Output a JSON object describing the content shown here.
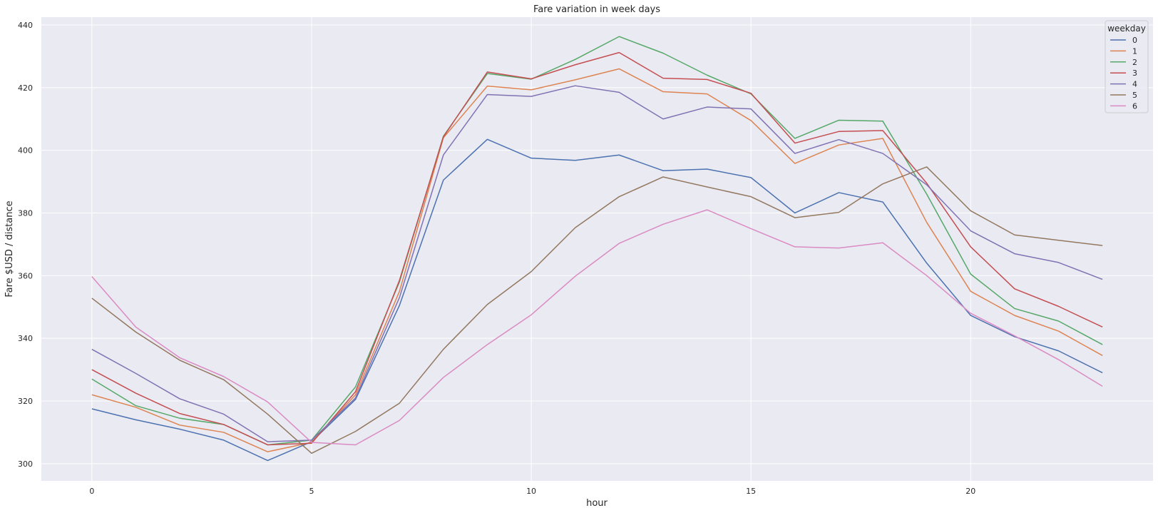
{
  "chart_data": {
    "type": "line",
    "title": "Fare variation in week days",
    "xlabel": "hour",
    "ylabel": "Fare $USD / distance",
    "xlim": [
      -1.15,
      24.15
    ],
    "ylim": [
      294.5,
      442.5
    ],
    "xticks": [
      0,
      5,
      10,
      15,
      20
    ],
    "yticks": [
      300,
      320,
      340,
      360,
      380,
      400,
      420,
      440
    ],
    "grid": true,
    "legend_title": "weekday",
    "legend_placement": "top-right",
    "x": [
      0,
      1,
      2,
      3,
      4,
      5,
      6,
      7,
      8,
      9,
      10,
      11,
      12,
      13,
      14,
      15,
      16,
      17,
      18,
      19,
      20,
      21,
      22,
      23
    ],
    "series": [
      {
        "name": "0",
        "color": "#4c72b0",
        "values": [
          317.5,
          314,
          311,
          307.5,
          301,
          307,
          320.5,
          350.5,
          390.5,
          403.5,
          397.5,
          396.8,
          398.5,
          393.5,
          394,
          391.3,
          380,
          386.5,
          383.5,
          364,
          347.3,
          340.5,
          336,
          329
        ]
      },
      {
        "name": "1",
        "color": "#dd8452",
        "values": [
          322,
          318,
          312.3,
          310,
          303.8,
          306.8,
          322,
          355,
          404,
          420.5,
          419.3,
          422.5,
          426,
          418.7,
          418,
          409.5,
          395.8,
          401.7,
          403.8,
          377,
          355,
          347.3,
          342.3,
          334.5
        ]
      },
      {
        "name": "2",
        "color": "#55a868",
        "values": [
          327,
          318.5,
          314.5,
          312.5,
          306,
          307.5,
          324.5,
          358,
          404.5,
          424.5,
          422.7,
          429,
          436.3,
          431,
          424,
          418,
          403.8,
          409.6,
          409.3,
          386,
          360.5,
          349.5,
          345.5,
          338
        ]
      },
      {
        "name": "3",
        "color": "#c44e52",
        "values": [
          330,
          322.5,
          316,
          312.5,
          306,
          306.5,
          323,
          358.5,
          404.3,
          425,
          422.8,
          427.3,
          431.2,
          423,
          422.6,
          418.2,
          402.3,
          406,
          406.3,
          389.5,
          369.2,
          355.8,
          350.2,
          343.6
        ]
      },
      {
        "name": "4",
        "color": "#8172b3",
        "values": [
          336.5,
          328.8,
          320.7,
          315.8,
          307,
          307.5,
          321,
          353,
          398.5,
          417.8,
          417.2,
          420.6,
          418.5,
          410,
          413.8,
          413.2,
          399,
          403.4,
          399,
          389,
          374.3,
          367,
          364.2,
          358.8
        ]
      },
      {
        "name": "5",
        "color": "#937860",
        "values": [
          352.8,
          342,
          333,
          326.8,
          315.8,
          303.3,
          310.3,
          319.3,
          336.5,
          350.8,
          361.3,
          375.3,
          385.2,
          391.5,
          388.3,
          385.2,
          378.5,
          380.2,
          389.3,
          394.7,
          380.7,
          373,
          371.3,
          369.6
        ]
      },
      {
        "name": "6",
        "color": "#da8bc3",
        "values": [
          359.7,
          343.6,
          333.8,
          327.8,
          319.7,
          306.8,
          306,
          313.8,
          327.5,
          338,
          347.5,
          359.8,
          370.3,
          376.4,
          381,
          375,
          369.2,
          368.8,
          370.5,
          360,
          348,
          340.8,
          333.2,
          324.7
        ]
      }
    ]
  }
}
